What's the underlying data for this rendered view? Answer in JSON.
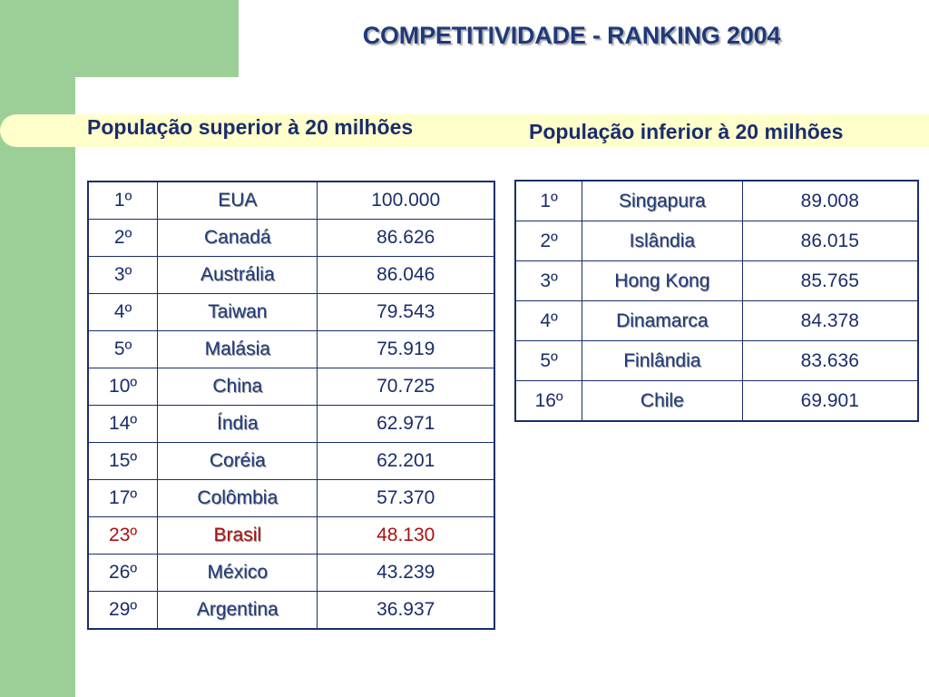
{
  "title": "COMPETITIVIDADE - RANKING 2004",
  "left_section": {
    "heading": "População superior à 20 milhões",
    "rows": [
      {
        "rank": "1º",
        "country": "EUA",
        "score": "100.000"
      },
      {
        "rank": "2º",
        "country": "Canadá",
        "score": "86.626"
      },
      {
        "rank": "3º",
        "country": "Austrália",
        "score": "86.046"
      },
      {
        "rank": "4º",
        "country": "Taiwan",
        "score": "79.543"
      },
      {
        "rank": "5º",
        "country": "Malásia",
        "score": "75.919"
      },
      {
        "rank": "10º",
        "country": "China",
        "score": "70.725"
      },
      {
        "rank": "14º",
        "country": "Índia",
        "score": "62.971"
      },
      {
        "rank": "15º",
        "country": "Coréia",
        "score": "62.201"
      },
      {
        "rank": "17º",
        "country": "Colômbia",
        "score": "57.370"
      },
      {
        "rank": "23º",
        "country": "Brasil",
        "score": "48.130",
        "highlight": true
      },
      {
        "rank": "26º",
        "country": "México",
        "score": "43.239"
      },
      {
        "rank": "29º",
        "country": "Argentina",
        "score": "36.937"
      }
    ]
  },
  "right_section": {
    "heading": "População inferior à 20 milhões",
    "rows": [
      {
        "rank": "1º",
        "country": "Singapura",
        "score": "89.008"
      },
      {
        "rank": "2º",
        "country": "Islândia",
        "score": "86.015"
      },
      {
        "rank": "3º",
        "country": "Hong Kong",
        "score": "85.765"
      },
      {
        "rank": "4º",
        "country": "Dinamarca",
        "score": "84.378"
      },
      {
        "rank": "5º",
        "country": "Finlândia",
        "score": "83.636"
      },
      {
        "rank": "16º",
        "country": "Chile",
        "score": "69.901"
      }
    ]
  },
  "colors": {
    "green_accent": "#9ccf97",
    "yellow_band": "#ffffcc",
    "text_navy": "#1a2d6b",
    "highlight_red": "#aa1111"
  }
}
